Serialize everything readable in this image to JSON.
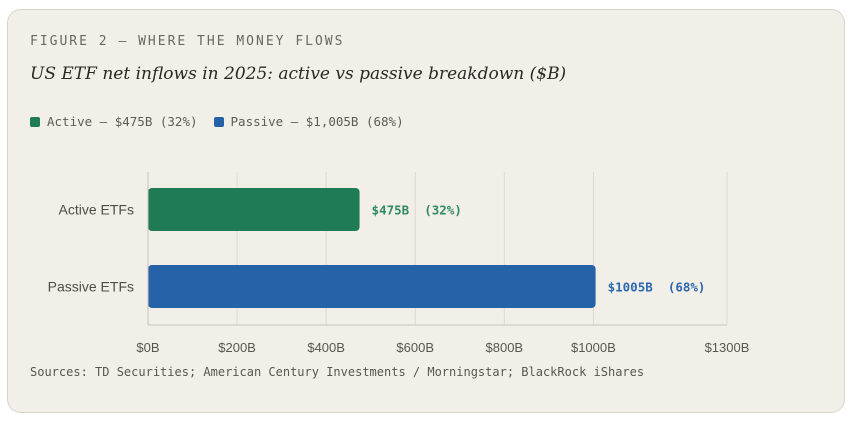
{
  "figure_label": "FIGURE 2 — WHERE THE MONEY FLOWS",
  "title": "US ETF net inflows in 2025: active vs passive breakdown ($B)",
  "legend": [
    {
      "label": "Active — $475B (32%)",
      "color": "#1e7b55"
    },
    {
      "label": "Passive — $1,005B (68%)",
      "color": "#2662a8"
    }
  ],
  "sources": "Sources: TD Securities; American Century Investments / Morningstar; BlackRock iShares",
  "chart_data": {
    "type": "bar",
    "orientation": "horizontal",
    "categories": [
      "Active ETFs",
      "Passive ETFs"
    ],
    "values": [
      475,
      1005
    ],
    "data_labels": [
      "$475B  (32%)",
      "$1005B  (68%)"
    ],
    "colors": [
      "#1e7b55",
      "#2662a8"
    ],
    "label_colors": [
      "#2f8a64",
      "#2c68ad"
    ],
    "xlim": [
      0,
      1300
    ],
    "ticks": [
      0,
      200,
      400,
      600,
      800,
      1000,
      1300
    ],
    "tick_labels": [
      "$0B",
      "$200B",
      "$400B",
      "$600B",
      "$800B",
      "$1000B",
      "$1300B"
    ],
    "grid": true
  }
}
